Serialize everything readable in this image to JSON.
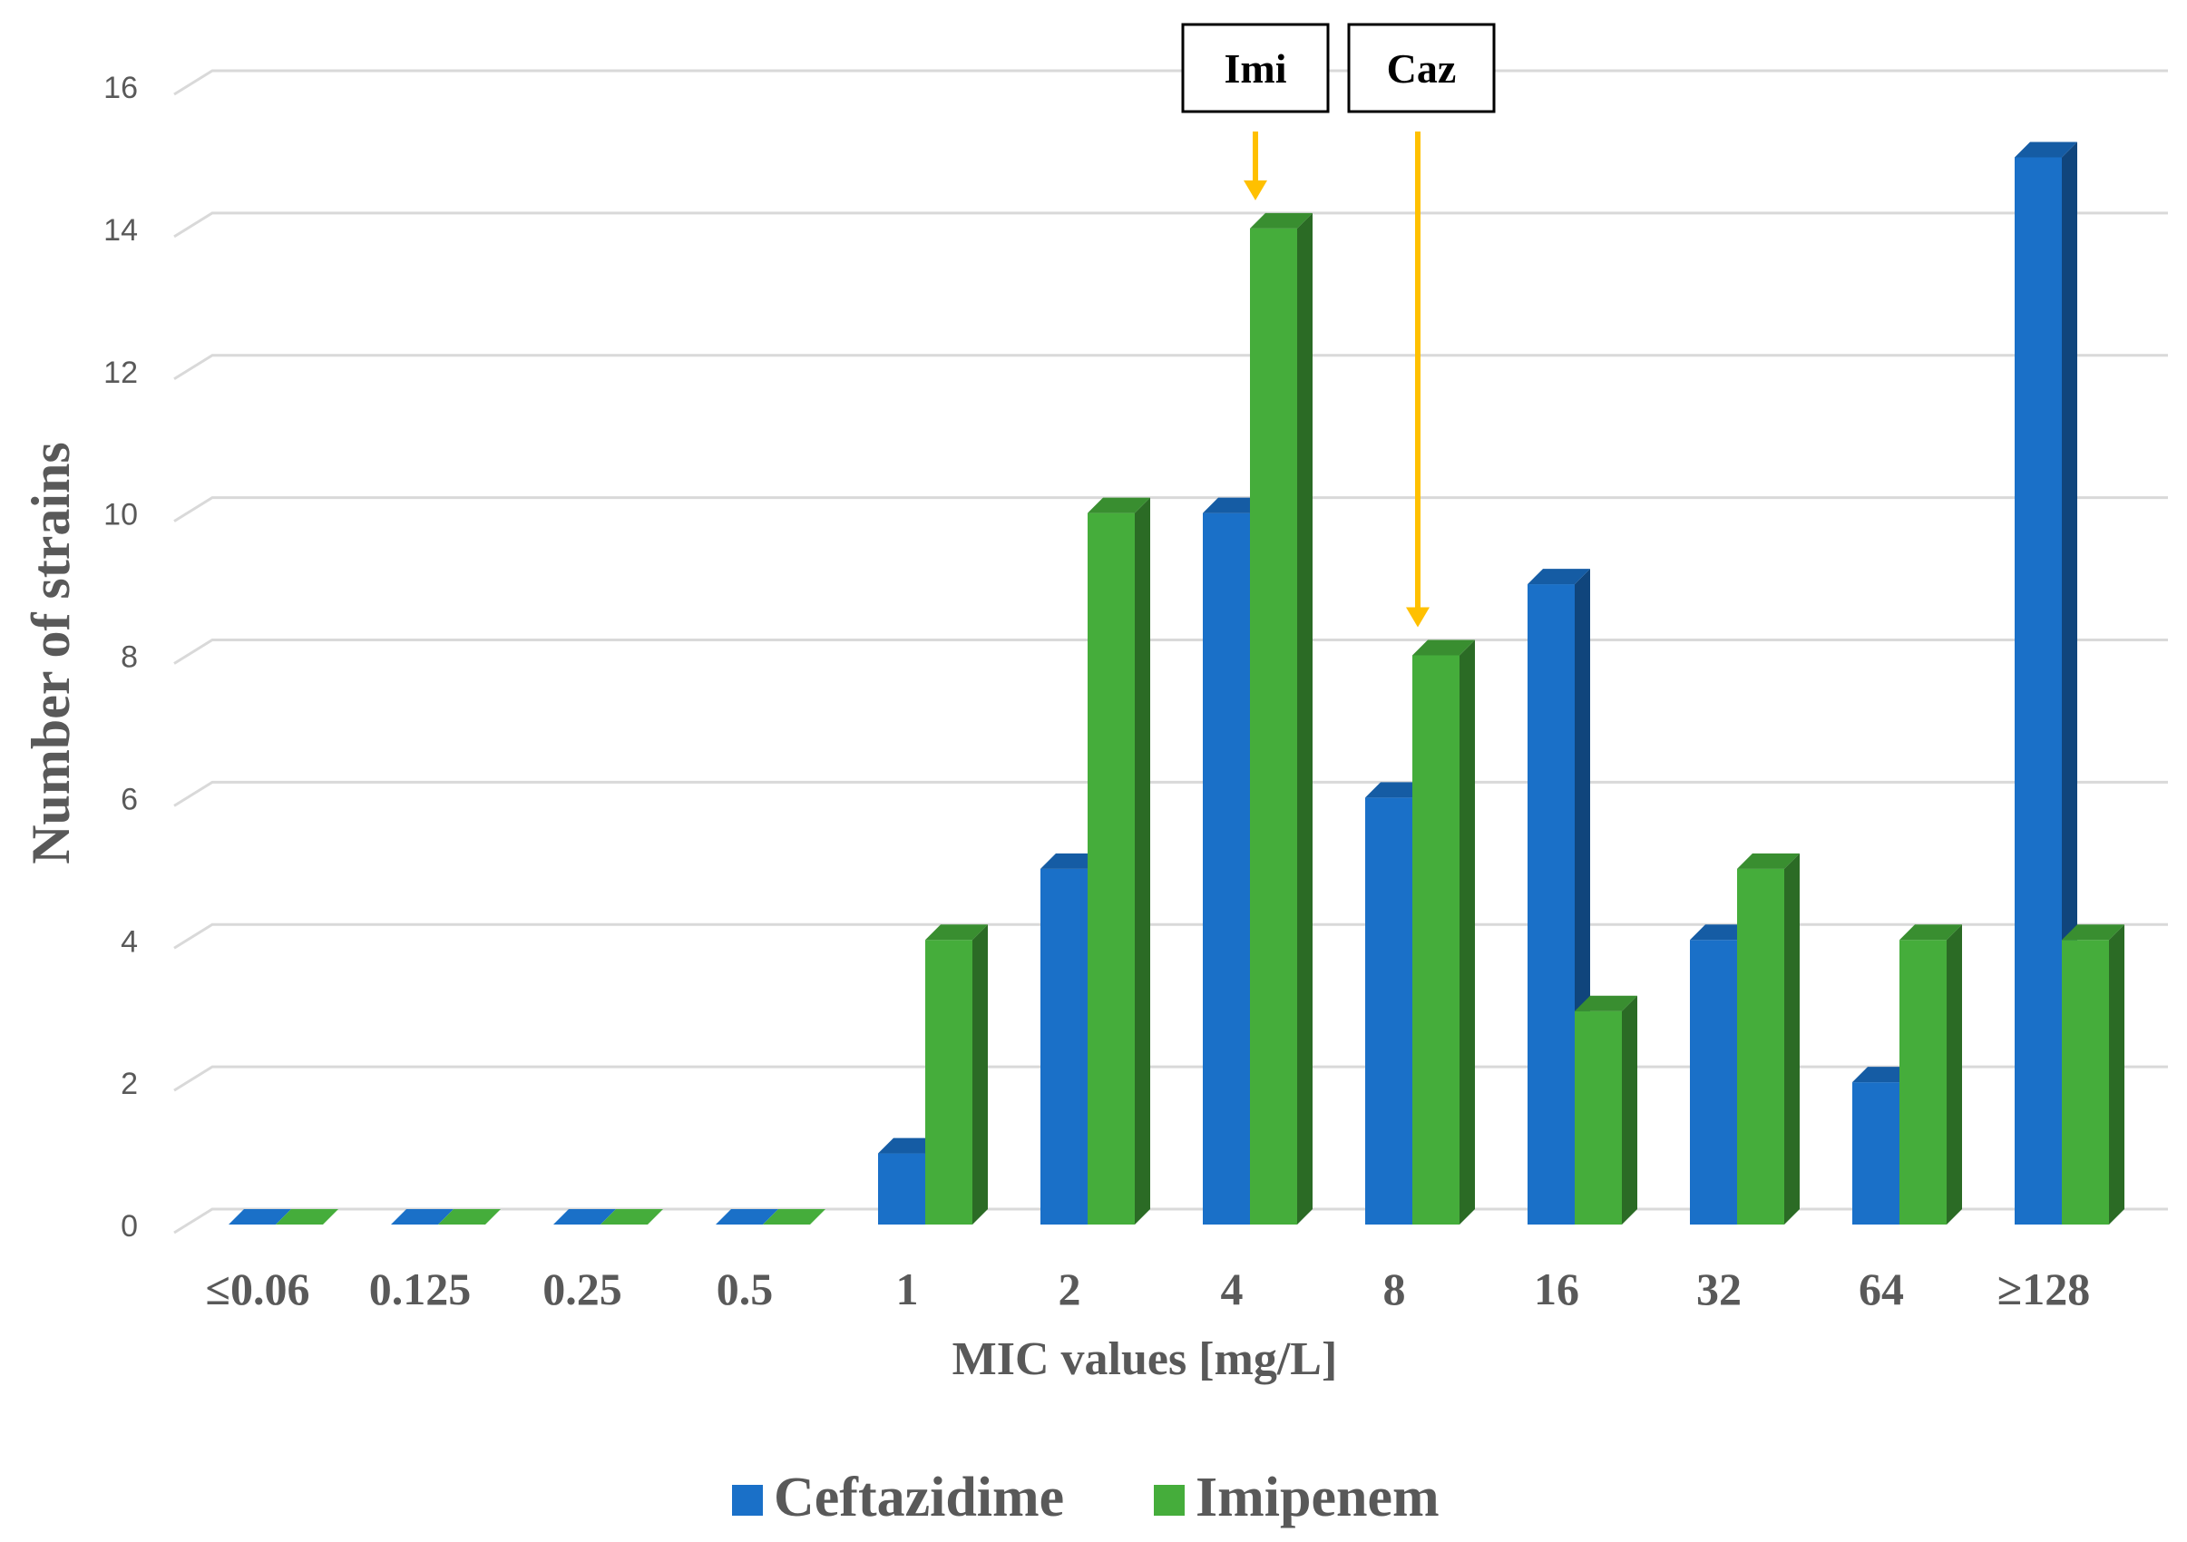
{
  "chart_data": {
    "type": "bar",
    "title": "",
    "xlabel": "MIC values [mg/L]",
    "ylabel": "Number of strains",
    "ylim": [
      0,
      16
    ],
    "yticks": [
      0,
      2,
      4,
      6,
      8,
      10,
      12,
      14,
      16
    ],
    "grid": true,
    "legend_position": "bottom",
    "categories": [
      "≤0.06",
      "0.125",
      "0.25",
      "0.5",
      "1",
      "2",
      "4",
      "8",
      "16",
      "32",
      "64",
      "≥128"
    ],
    "series": [
      {
        "name": "Ceftazidime",
        "color": "#1a70c8",
        "values": [
          0,
          0,
          0,
          0,
          1,
          5,
          10,
          6,
          9,
          4,
          2,
          15
        ]
      },
      {
        "name": "Imipenem",
        "color": "#45ad3b",
        "values": [
          0,
          0,
          0,
          0,
          4,
          10,
          14,
          8,
          3,
          5,
          4,
          4
        ]
      }
    ],
    "annotations": [
      {
        "label": "Imi",
        "category": "4",
        "series": "Imipenem",
        "arrow_color": "#ffc000"
      },
      {
        "label": "Caz",
        "category": "8",
        "series": "Imipenem",
        "arrow_color": "#ffc000"
      }
    ]
  }
}
